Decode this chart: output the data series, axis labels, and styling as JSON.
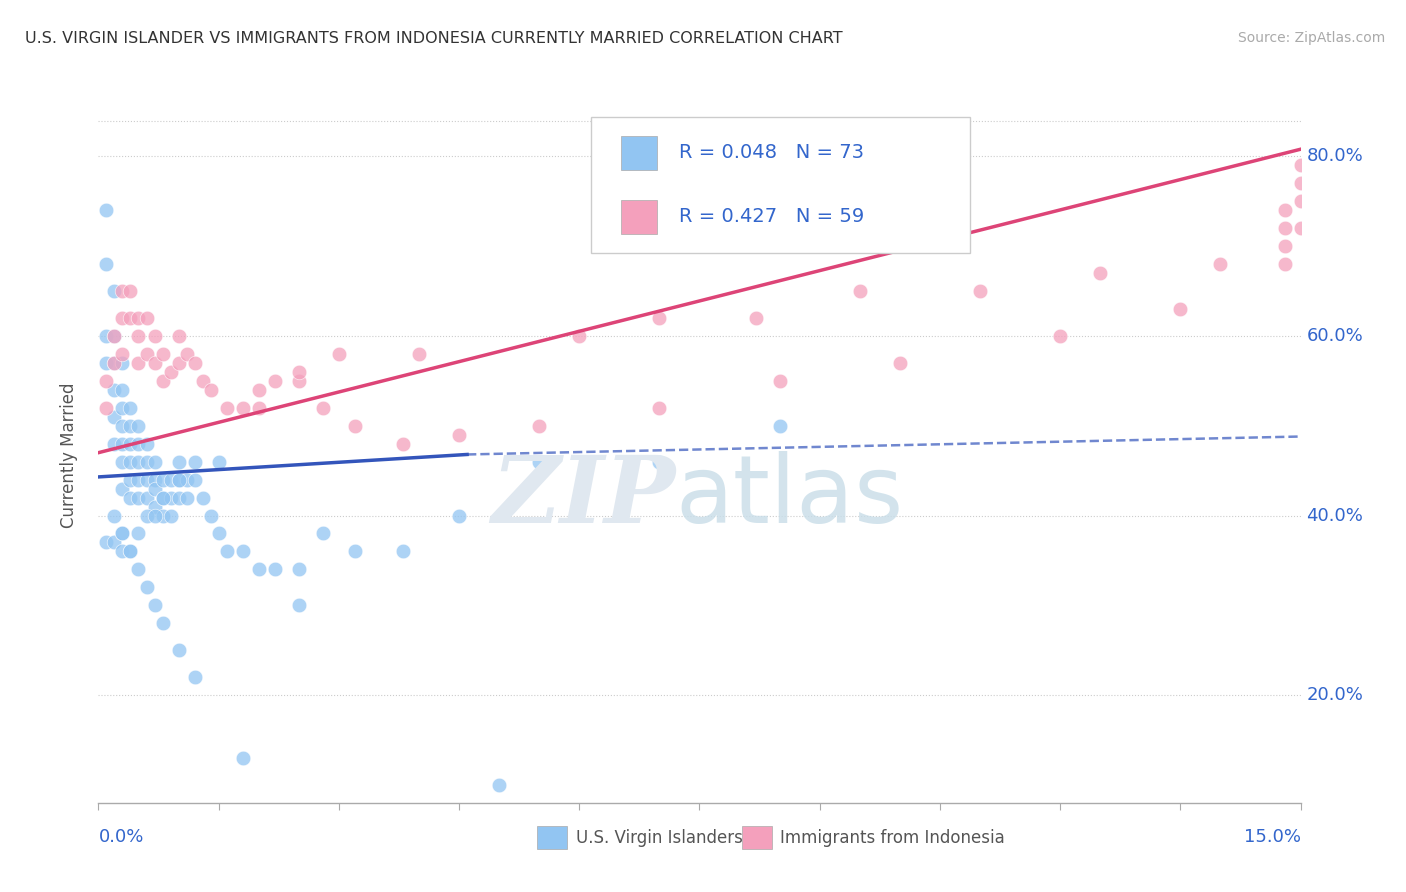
{
  "title": "U.S. VIRGIN ISLANDER VS IMMIGRANTS FROM INDONESIA CURRENTLY MARRIED CORRELATION CHART",
  "source": "Source: ZipAtlas.com",
  "ylabel": "Currently Married",
  "xmin": 0.0,
  "xmax": 0.15,
  "ymin": 0.08,
  "ymax": 0.855,
  "yticks": [
    0.2,
    0.4,
    0.6,
    0.8
  ],
  "ytick_labels": [
    "20.0%",
    "40.0%",
    "60.0%",
    "80.0%"
  ],
  "blue_color": "#92C5F2",
  "pink_color": "#F4A0BC",
  "blue_line_color": "#3355BB",
  "pink_line_color": "#DD4477",
  "blue_R": 0.048,
  "blue_N": 73,
  "pink_R": 0.427,
  "pink_N": 59,
  "legend_label_blue": "U.S. Virgin Islanders",
  "legend_label_pink": "Immigrants from Indonesia",
  "blue_trend_solid": [
    0.0,
    0.046,
    0.443,
    0.468
  ],
  "blue_trend_dashed": [
    0.046,
    0.15,
    0.468,
    0.488
  ],
  "pink_trend": [
    0.0,
    0.15,
    0.47,
    0.808
  ],
  "blue_scatter_x": [
    0.001,
    0.001,
    0.001,
    0.001,
    0.002,
    0.002,
    0.002,
    0.002,
    0.002,
    0.002,
    0.003,
    0.003,
    0.003,
    0.003,
    0.003,
    0.003,
    0.003,
    0.004,
    0.004,
    0.004,
    0.004,
    0.004,
    0.004,
    0.005,
    0.005,
    0.005,
    0.005,
    0.005,
    0.006,
    0.006,
    0.006,
    0.006,
    0.007,
    0.007,
    0.007,
    0.007,
    0.008,
    0.008,
    0.008,
    0.009,
    0.009,
    0.009,
    0.01,
    0.01,
    0.01,
    0.011,
    0.011,
    0.012,
    0.013,
    0.014,
    0.015,
    0.016,
    0.018,
    0.02,
    0.022,
    0.025,
    0.028,
    0.032,
    0.038,
    0.045,
    0.055,
    0.07,
    0.085,
    0.001,
    0.002,
    0.003,
    0.003,
    0.004,
    0.005,
    0.006,
    0.007,
    0.008,
    0.01,
    0.012,
    0.015
  ],
  "blue_scatter_y": [
    0.74,
    0.68,
    0.6,
    0.57,
    0.65,
    0.6,
    0.57,
    0.54,
    0.51,
    0.48,
    0.57,
    0.54,
    0.52,
    0.5,
    0.48,
    0.46,
    0.43,
    0.52,
    0.5,
    0.48,
    0.46,
    0.44,
    0.42,
    0.5,
    0.48,
    0.46,
    0.44,
    0.42,
    0.48,
    0.46,
    0.44,
    0.42,
    0.46,
    0.44,
    0.43,
    0.41,
    0.44,
    0.42,
    0.4,
    0.44,
    0.42,
    0.4,
    0.46,
    0.44,
    0.42,
    0.44,
    0.42,
    0.44,
    0.42,
    0.4,
    0.38,
    0.36,
    0.36,
    0.34,
    0.34,
    0.34,
    0.38,
    0.36,
    0.36,
    0.4,
    0.46,
    0.46,
    0.5,
    0.37,
    0.37,
    0.36,
    0.38,
    0.36,
    0.38,
    0.4,
    0.4,
    0.42,
    0.44,
    0.46,
    0.46
  ],
  "blue_scatter_y_low": [
    0.4,
    0.38,
    0.36,
    0.34,
    0.32,
    0.3,
    0.28,
    0.25,
    0.22,
    0.13,
    0.1,
    0.3
  ],
  "blue_scatter_x_low": [
    0.002,
    0.003,
    0.004,
    0.005,
    0.006,
    0.007,
    0.008,
    0.01,
    0.012,
    0.018,
    0.05,
    0.025
  ],
  "pink_scatter_x": [
    0.001,
    0.001,
    0.002,
    0.002,
    0.003,
    0.003,
    0.003,
    0.004,
    0.004,
    0.005,
    0.005,
    0.005,
    0.006,
    0.006,
    0.007,
    0.007,
    0.008,
    0.008,
    0.009,
    0.01,
    0.01,
    0.011,
    0.012,
    0.013,
    0.014,
    0.016,
    0.018,
    0.02,
    0.022,
    0.025,
    0.028,
    0.032,
    0.038,
    0.045,
    0.055,
    0.07,
    0.085,
    0.1,
    0.12,
    0.135,
    0.148,
    0.148,
    0.148,
    0.02,
    0.025,
    0.03,
    0.04,
    0.06,
    0.07,
    0.082,
    0.095,
    0.11,
    0.125,
    0.14,
    0.148,
    0.15,
    0.15,
    0.15,
    0.15
  ],
  "pink_scatter_y": [
    0.55,
    0.52,
    0.6,
    0.57,
    0.65,
    0.62,
    0.58,
    0.65,
    0.62,
    0.62,
    0.6,
    0.57,
    0.62,
    0.58,
    0.6,
    0.57,
    0.58,
    0.55,
    0.56,
    0.6,
    0.57,
    0.58,
    0.57,
    0.55,
    0.54,
    0.52,
    0.52,
    0.52,
    0.55,
    0.55,
    0.52,
    0.5,
    0.48,
    0.49,
    0.5,
    0.52,
    0.55,
    0.57,
    0.6,
    0.63,
    0.68,
    0.7,
    0.74,
    0.54,
    0.56,
    0.58,
    0.58,
    0.6,
    0.62,
    0.62,
    0.65,
    0.65,
    0.67,
    0.68,
    0.72,
    0.75,
    0.77,
    0.79,
    0.72
  ]
}
